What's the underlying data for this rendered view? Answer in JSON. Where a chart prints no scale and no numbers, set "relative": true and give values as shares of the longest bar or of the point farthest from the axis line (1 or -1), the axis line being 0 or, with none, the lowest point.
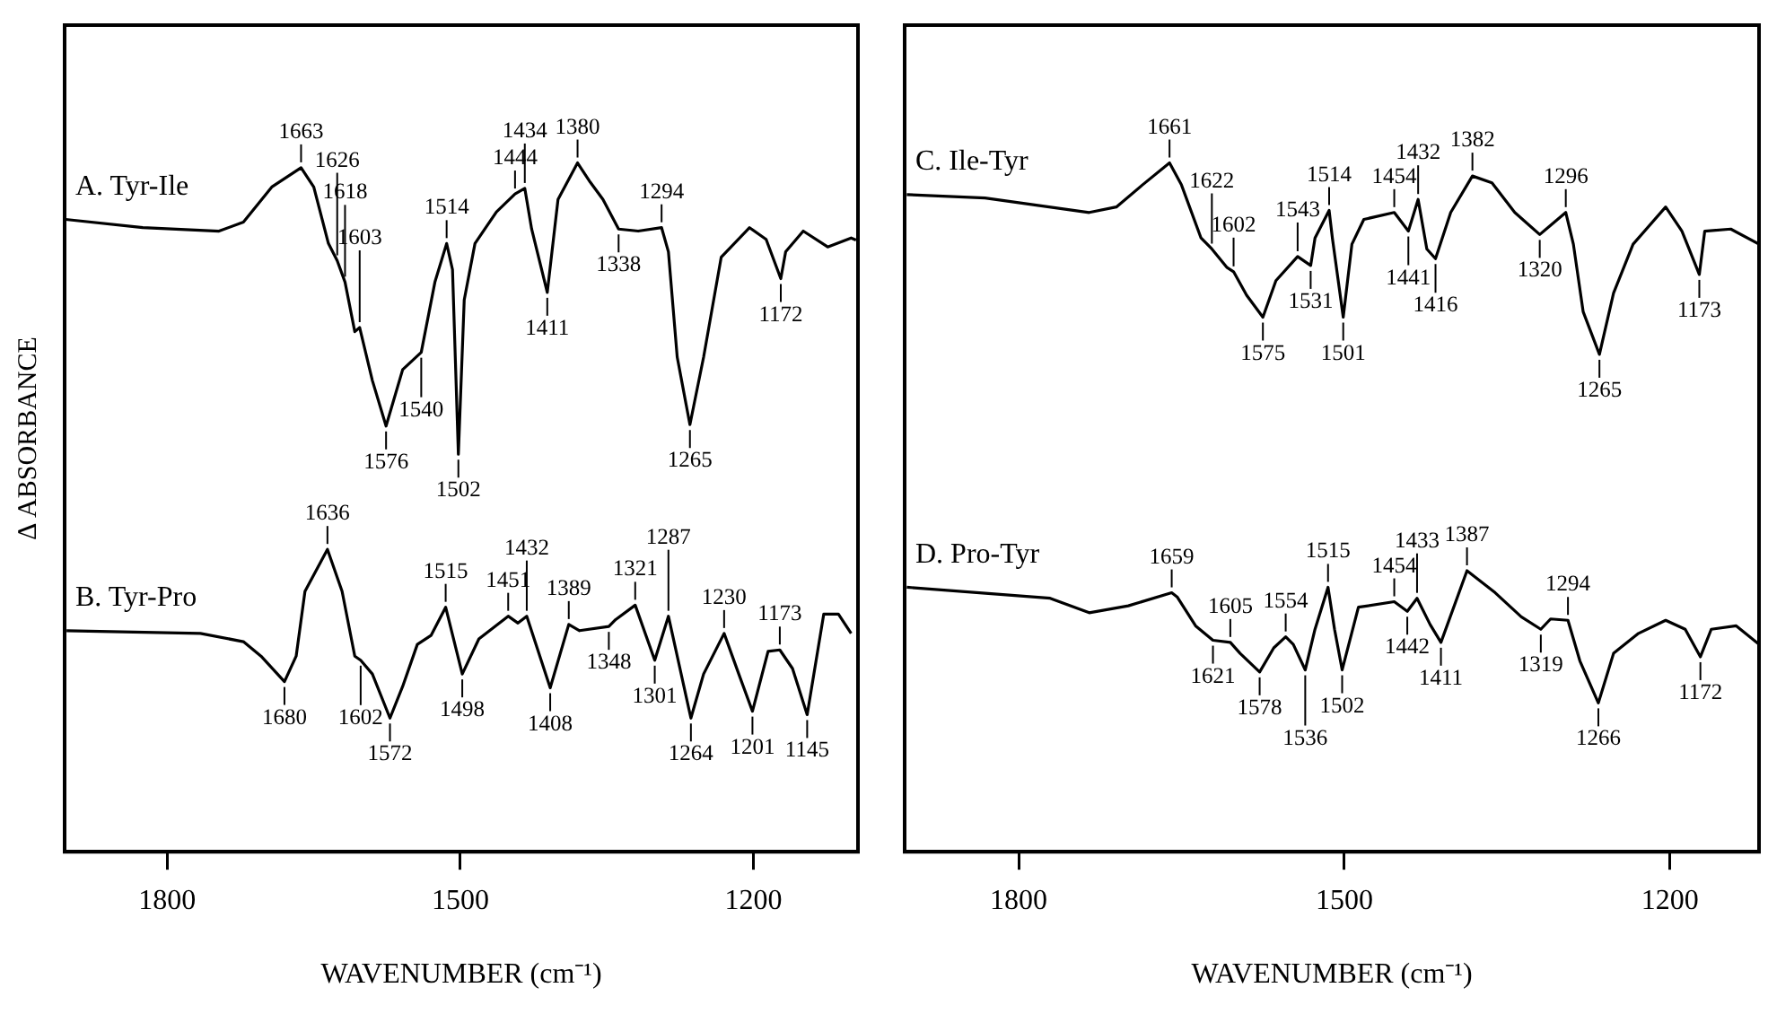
{
  "chart_data": [
    {
      "type": "line",
      "relative": true,
      "ylabel": "Δ ABSORBANCE",
      "xlabel": "WAVENUMBER (cm⁻¹)",
      "xlim": [
        1905,
        1093
      ],
      "xticks": [
        1800,
        1500,
        1200
      ],
      "grid": false,
      "legend": false,
      "marker": "none",
      "line_style": "solid",
      "tick_labels": "x",
      "series": [
        {
          "name": "A. Tyr-Ile",
          "color": "#000000",
          "x": [
            1904,
            1825,
            1747,
            1722,
            1693,
            1663,
            1650,
            1635,
            1626,
            1618,
            1608,
            1603,
            1590,
            1576,
            1559,
            1540,
            1526,
            1514,
            1508,
            1502,
            1496,
            1485,
            1463,
            1444,
            1434,
            1427,
            1411,
            1400,
            1380,
            1367,
            1354,
            1338,
            1318,
            1294,
            1287,
            1278,
            1265,
            1251,
            1233,
            1204,
            1187,
            1172,
            1167,
            1149,
            1124,
            1100,
            1095
          ],
          "values": [
            0.918,
            0.906,
            0.901,
            0.914,
            0.965,
            0.993,
            0.965,
            0.883,
            0.858,
            0.827,
            0.755,
            0.761,
            0.684,
            0.618,
            0.7,
            0.725,
            0.827,
            0.883,
            0.845,
            0.577,
            0.801,
            0.883,
            0.929,
            0.955,
            0.963,
            0.904,
            0.812,
            0.947,
            1,
            0.972,
            0.947,
            0.904,
            0.901,
            0.906,
            0.871,
            0.718,
            0.62,
            0.718,
            0.863,
            0.906,
            0.889,
            0.832,
            0.871,
            0.901,
            0.878,
            0.891,
            0.888
          ]
        },
        {
          "name": "B. Tyr-Pro",
          "color": "#000000",
          "x": [
            1903,
            1766,
            1722,
            1704,
            1680,
            1668,
            1659,
            1636,
            1621,
            1608,
            1602,
            1590,
            1572,
            1559,
            1544,
            1530,
            1515,
            1498,
            1481,
            1451,
            1441,
            1432,
            1408,
            1389,
            1378,
            1348,
            1341,
            1321,
            1301,
            1287,
            1264,
            1251,
            1230,
            1215,
            1201,
            1185,
            1173,
            1160,
            1145,
            1128,
            1113,
            1100
          ],
          "values": [
            0.321,
            0.317,
            0.305,
            0.284,
            0.247,
            0.284,
            0.378,
            0.439,
            0.378,
            0.284,
            0.278,
            0.258,
            0.194,
            0.24,
            0.301,
            0.314,
            0.355,
            0.258,
            0.309,
            0.342,
            0.332,
            0.342,
            0.238,
            0.33,
            0.321,
            0.327,
            0.337,
            0.358,
            0.278,
            0.342,
            0.194,
            0.258,
            0.317,
            0.258,
            0.204,
            0.291,
            0.293,
            0.266,
            0.199,
            0.345,
            0.345,
            0.317
          ]
        }
      ],
      "annotations": [
        {
          "text": "1663",
          "x": 1663,
          "y": 0.993
        },
        {
          "text": "1618",
          "x": 1618,
          "y": 0.827
        },
        {
          "text": "1626",
          "x": 1626,
          "y": 0.858
        },
        {
          "text": "1603",
          "x": 1603,
          "y": 0.761
        },
        {
          "text": "1576",
          "x": 1576,
          "y": 0.618
        },
        {
          "text": "1540",
          "x": 1540,
          "y": 0.725
        },
        {
          "text": "1514",
          "x": 1514,
          "y": 0.883
        },
        {
          "text": "1502",
          "x": 1502,
          "y": 0.577
        },
        {
          "text": "1444",
          "x": 1444,
          "y": 0.955
        },
        {
          "text": "1434",
          "x": 1434,
          "y": 0.963
        },
        {
          "text": "1380",
          "x": 1380,
          "y": 1
        },
        {
          "text": "1411",
          "x": 1411,
          "y": 0.812
        },
        {
          "text": "1338",
          "x": 1338,
          "y": 0.904
        },
        {
          "text": "1294",
          "x": 1294,
          "y": 0.906
        },
        {
          "text": "1265",
          "x": 1265,
          "y": 0.62
        },
        {
          "text": "1172",
          "x": 1172,
          "y": 0.832
        },
        {
          "text": "1636",
          "x": 1636,
          "y": 0.439
        },
        {
          "text": "1680",
          "x": 1680,
          "y": 0.247
        },
        {
          "text": "1602",
          "x": 1602,
          "y": 0.278
        },
        {
          "text": "1572",
          "x": 1572,
          "y": 0.194
        },
        {
          "text": "1515",
          "x": 1515,
          "y": 0.355
        },
        {
          "text": "1498",
          "x": 1498,
          "y": 0.258
        },
        {
          "text": "1451",
          "x": 1451,
          "y": 0.342
        },
        {
          "text": "1432",
          "x": 1432,
          "y": 0.342
        },
        {
          "text": "1408",
          "x": 1408,
          "y": 0.238
        },
        {
          "text": "1389",
          "x": 1389,
          "y": 0.33
        },
        {
          "text": "1348",
          "x": 1348,
          "y": 0.327
        },
        {
          "text": "1321",
          "x": 1321,
          "y": 0.358
        },
        {
          "text": "1301",
          "x": 1301,
          "y": 0.278
        },
        {
          "text": "1287",
          "x": 1287,
          "y": 0.342
        },
        {
          "text": "1264",
          "x": 1264,
          "y": 0.194
        },
        {
          "text": "1230",
          "x": 1230,
          "y": 0.317
        },
        {
          "text": "1201",
          "x": 1201,
          "y": 0.204
        },
        {
          "text": "1173",
          "x": 1173,
          "y": 0.293
        },
        {
          "text": "1145",
          "x": 1145,
          "y": 0.199
        }
      ]
    },
    {
      "type": "line",
      "relative": true,
      "xlabel": "WAVENUMBER (cm⁻¹)",
      "xlim": [
        1905,
        1118
      ],
      "xticks": [
        1800,
        1500,
        1200
      ],
      "grid": false,
      "legend": false,
      "marker": "none",
      "line_style": "solid",
      "tick_labels": "x",
      "series": [
        {
          "name": "C. Ile-Tyr",
          "color": "#000000",
          "x": [
            1903,
            1831,
            1735,
            1710,
            1686,
            1661,
            1650,
            1632,
            1622,
            1608,
            1602,
            1590,
            1575,
            1563,
            1543,
            1531,
            1527,
            1514,
            1511,
            1501,
            1493,
            1482,
            1454,
            1441,
            1432,
            1424,
            1416,
            1402,
            1382,
            1364,
            1343,
            1320,
            1296,
            1289,
            1280,
            1265,
            1252,
            1234,
            1204,
            1189,
            1173,
            1168,
            1144,
            1118
          ],
          "values": [
            0.954,
            0.949,
            0.928,
            0.936,
            0.968,
            1,
            0.968,
            0.891,
            0.875,
            0.848,
            0.842,
            0.808,
            0.776,
            0.829,
            0.864,
            0.851,
            0.891,
            0.931,
            0.891,
            0.776,
            0.882,
            0.918,
            0.928,
            0.901,
            0.947,
            0.875,
            0.861,
            0.928,
            0.981,
            0.971,
            0.928,
            0.896,
            0.928,
            0.882,
            0.784,
            0.722,
            0.811,
            0.882,
            0.936,
            0.901,
            0.838,
            0.901,
            0.904,
            0.882
          ]
        },
        {
          "name": "D. Pro-Tyr",
          "color": "#000000",
          "x": [
            1903,
            1771,
            1735,
            1699,
            1659,
            1654,
            1637,
            1621,
            1605,
            1596,
            1578,
            1565,
            1554,
            1547,
            1536,
            1527,
            1515,
            1509,
            1502,
            1487,
            1454,
            1442,
            1433,
            1421,
            1411,
            1387,
            1361,
            1337,
            1319,
            1310,
            1294,
            1283,
            1266,
            1252,
            1229,
            1204,
            1186,
            1172,
            1162,
            1139,
            1118
          ],
          "values": [
            0.384,
            0.368,
            0.347,
            0.357,
            0.376,
            0.37,
            0.328,
            0.307,
            0.304,
            0.288,
            0.261,
            0.296,
            0.312,
            0.301,
            0.264,
            0.323,
            0.384,
            0.323,
            0.264,
            0.355,
            0.363,
            0.349,
            0.368,
            0.33,
            0.304,
            0.408,
            0.376,
            0.341,
            0.323,
            0.338,
            0.336,
            0.277,
            0.216,
            0.288,
            0.317,
            0.336,
            0.323,
            0.283,
            0.323,
            0.328,
            0.301
          ]
        }
      ],
      "annotations": [
        {
          "text": "1661",
          "x": 1661,
          "y": 1
        },
        {
          "text": "1622",
          "x": 1622,
          "y": 0.875
        },
        {
          "text": "1602",
          "x": 1602,
          "y": 0.842
        },
        {
          "text": "1575",
          "x": 1575,
          "y": 0.776
        },
        {
          "text": "1543",
          "x": 1543,
          "y": 0.864
        },
        {
          "text": "1531",
          "x": 1531,
          "y": 0.851
        },
        {
          "text": "1514",
          "x": 1514,
          "y": 0.931
        },
        {
          "text": "1501",
          "x": 1501,
          "y": 0.776
        },
        {
          "text": "1454",
          "x": 1454,
          "y": 0.928
        },
        {
          "text": "1441",
          "x": 1441,
          "y": 0.901
        },
        {
          "text": "1432",
          "x": 1432,
          "y": 0.947
        },
        {
          "text": "1416",
          "x": 1416,
          "y": 0.861
        },
        {
          "text": "1382",
          "x": 1382,
          "y": 0.981
        },
        {
          "text": "1320",
          "x": 1320,
          "y": 0.896
        },
        {
          "text": "1296",
          "x": 1296,
          "y": 0.928
        },
        {
          "text": "1265",
          "x": 1265,
          "y": 0.722
        },
        {
          "text": "1173",
          "x": 1173,
          "y": 0.838
        },
        {
          "text": "1659",
          "x": 1659,
          "y": 0.376
        },
        {
          "text": "1621",
          "x": 1621,
          "y": 0.307
        },
        {
          "text": "1605",
          "x": 1605,
          "y": 0.304
        },
        {
          "text": "1578",
          "x": 1578,
          "y": 0.261
        },
        {
          "text": "1554",
          "x": 1554,
          "y": 0.312
        },
        {
          "text": "1536",
          "x": 1536,
          "y": 0.264
        },
        {
          "text": "1515",
          "x": 1515,
          "y": 0.384
        },
        {
          "text": "1502",
          "x": 1502,
          "y": 0.264
        },
        {
          "text": "1454",
          "x": 1454,
          "y": 0.363
        },
        {
          "text": "1442",
          "x": 1442,
          "y": 0.349
        },
        {
          "text": "1433",
          "x": 1433,
          "y": 0.368
        },
        {
          "text": "1411",
          "x": 1411,
          "y": 0.304
        },
        {
          "text": "1387",
          "x": 1387,
          "y": 0.408
        },
        {
          "text": "1319",
          "x": 1319,
          "y": 0.323
        },
        {
          "text": "1294",
          "x": 1294,
          "y": 0.336
        },
        {
          "text": "1266",
          "x": 1266,
          "y": 0.216
        },
        {
          "text": "1172",
          "x": 1172,
          "y": 0.283
        }
      ]
    }
  ]
}
